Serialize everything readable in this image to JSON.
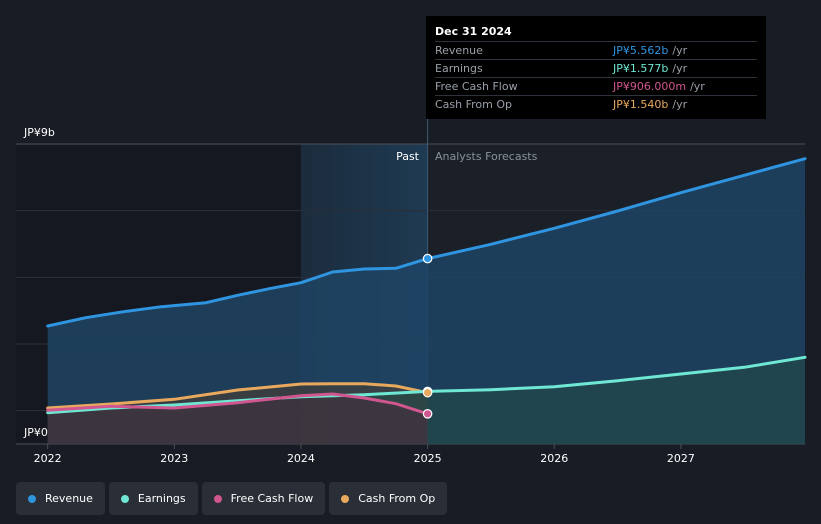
{
  "chart_data": {
    "type": "area",
    "currency_unit": "JP¥",
    "y_axis": {
      "labels": [
        "JP¥9b",
        "JP¥0"
      ],
      "ylim": [
        0,
        9
      ]
    },
    "x_axis": {
      "ticks": [
        "2022",
        "2023",
        "2024",
        "2025",
        "2026",
        "2027"
      ],
      "xlim": [
        2021.75,
        2027.98
      ]
    },
    "sections": {
      "past": "Past",
      "forecast": "Analysts Forecasts",
      "divider_x": 2025.0,
      "highlight_start": 2024.0
    },
    "series": [
      {
        "name": "Revenue",
        "color": "#2f95e0",
        "fill": "#1e4464",
        "marker_at": 2025.0,
        "points": [
          [
            2022.0,
            3.54
          ],
          [
            2022.3,
            3.79
          ],
          [
            2022.6,
            3.97
          ],
          [
            2022.9,
            4.12
          ],
          [
            2023.25,
            4.24
          ],
          [
            2023.5,
            4.46
          ],
          [
            2023.75,
            4.66
          ],
          [
            2024.0,
            4.84
          ],
          [
            2024.25,
            5.16
          ],
          [
            2024.5,
            5.25
          ],
          [
            2024.75,
            5.27
          ],
          [
            2025.0,
            5.562
          ],
          [
            2025.5,
            5.99
          ],
          [
            2026.0,
            6.47
          ],
          [
            2026.5,
            6.99
          ],
          [
            2027.0,
            7.54
          ],
          [
            2027.5,
            8.06
          ],
          [
            2027.98,
            8.56
          ]
        ]
      },
      {
        "name": "Earnings",
        "color": "#6ee7d3",
        "fill": "#234a45",
        "marker_at": 2025.0,
        "points": [
          [
            2022.0,
            0.94
          ],
          [
            2022.5,
            1.08
          ],
          [
            2023.0,
            1.17
          ],
          [
            2023.5,
            1.3
          ],
          [
            2024.0,
            1.42
          ],
          [
            2024.5,
            1.48
          ],
          [
            2025.0,
            1.577
          ],
          [
            2025.5,
            1.63
          ],
          [
            2026.0,
            1.72
          ],
          [
            2026.5,
            1.9
          ],
          [
            2027.0,
            2.1
          ],
          [
            2027.5,
            2.3
          ],
          [
            2027.98,
            2.6
          ]
        ]
      },
      {
        "name": "Free Cash Flow",
        "color": "#d0568f",
        "fill": "#4a2a3c",
        "marker_at": 2025.0,
        "points": [
          [
            2022.0,
            1.01
          ],
          [
            2022.5,
            1.13
          ],
          [
            2023.0,
            1.08
          ],
          [
            2023.5,
            1.24
          ],
          [
            2024.0,
            1.45
          ],
          [
            2024.25,
            1.5
          ],
          [
            2024.5,
            1.38
          ],
          [
            2024.75,
            1.21
          ],
          [
            2025.0,
            0.906
          ]
        ]
      },
      {
        "name": "Cash From Op",
        "color": "#e8a95e",
        "fill": "#4e3e30",
        "marker_at": 2025.0,
        "points": [
          [
            2022.0,
            1.08
          ],
          [
            2022.5,
            1.2
          ],
          [
            2023.0,
            1.34
          ],
          [
            2023.5,
            1.62
          ],
          [
            2024.0,
            1.8
          ],
          [
            2024.25,
            1.81
          ],
          [
            2024.5,
            1.81
          ],
          [
            2024.75,
            1.74
          ],
          [
            2025.0,
            1.54
          ]
        ]
      }
    ]
  },
  "tooltip": {
    "date": "Dec 31 2024",
    "unit": "/yr",
    "rows": [
      {
        "name": "Revenue",
        "value": "JP¥5.562b",
        "color": "#2f95e0"
      },
      {
        "name": "Earnings",
        "value": "JP¥1.577b",
        "color": "#6ee7d3"
      },
      {
        "name": "Free Cash Flow",
        "value": "JP¥906.000m",
        "color": "#d0568f"
      },
      {
        "name": "Cash From Op",
        "value": "JP¥1.540b",
        "color": "#e8a95e"
      }
    ]
  },
  "legend": [
    {
      "label": "Revenue",
      "color": "#2f95e0"
    },
    {
      "label": "Earnings",
      "color": "#6ee7d3"
    },
    {
      "label": "Free Cash Flow",
      "color": "#d0568f"
    },
    {
      "label": "Cash From Op",
      "color": "#e8a95e"
    }
  ]
}
